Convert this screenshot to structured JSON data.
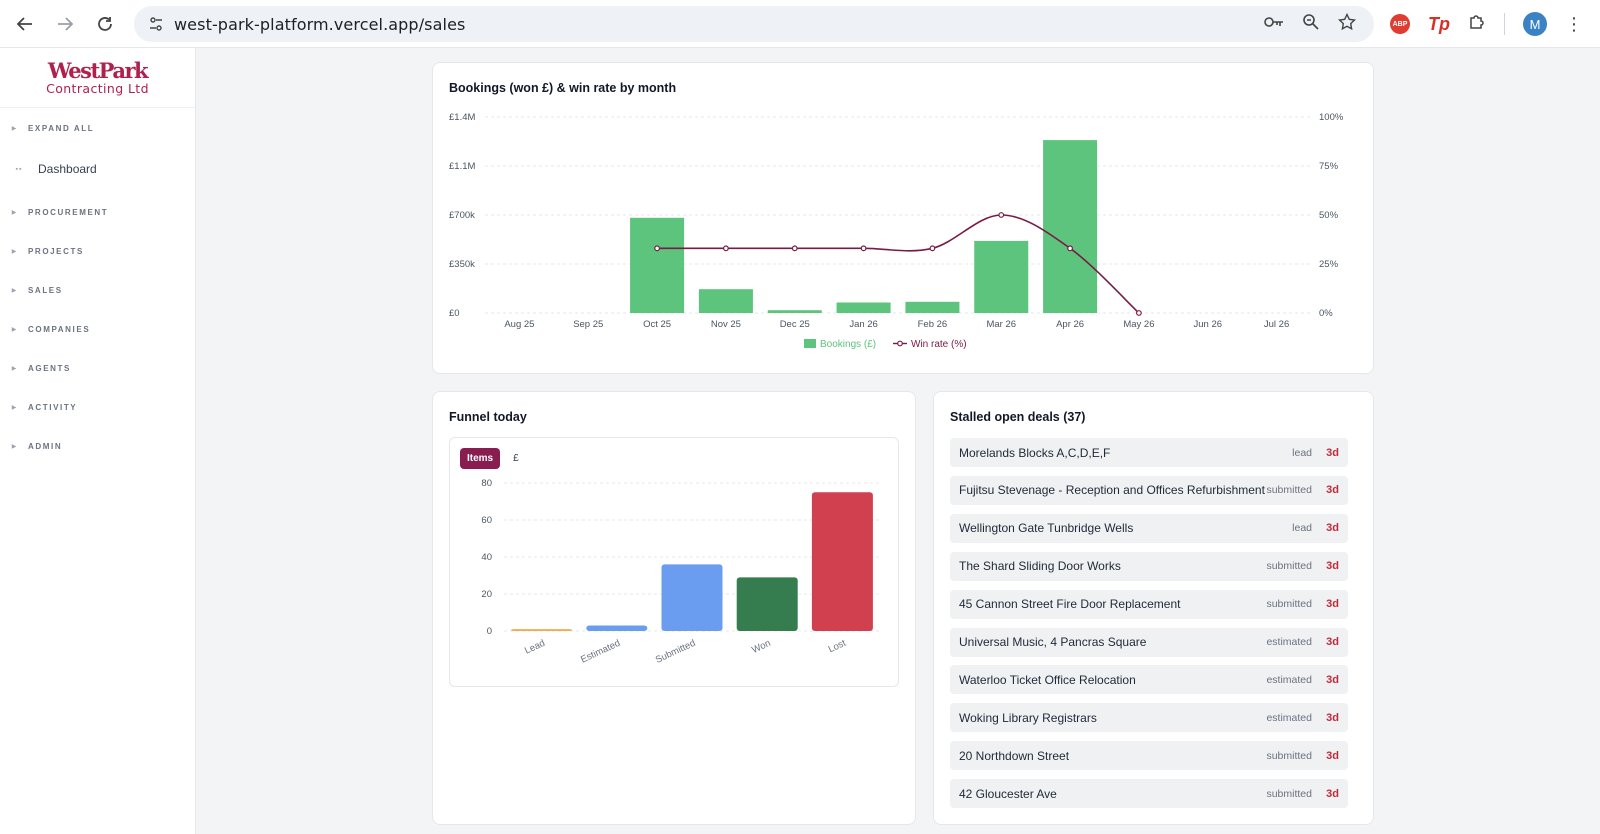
{
  "browser": {
    "url": "west-park-platform.vercel.app/sales",
    "avatar_initial": "M",
    "abp_label": "ABP",
    "tp_label": "Tp",
    "icons": [
      "back-arrow-icon",
      "forward-arrow-icon",
      "reload-icon",
      "site-info-icon",
      "password-key-icon",
      "zoom-icon",
      "bookmark-star-icon",
      "adblock-icon",
      "tp-extension-icon",
      "extensions-puzzle-icon",
      "menu-kebab-icon"
    ]
  },
  "sidebar": {
    "logo_line1": "WestPark",
    "logo_line2": "Contracting Ltd",
    "expand_all": "EXPAND ALL",
    "dashboard": "Dashboard",
    "sections": [
      "PROCUREMENT",
      "PROJECTS",
      "SALES",
      "COMPANIES",
      "AGENTS",
      "ACTIVITY",
      "ADMIN"
    ]
  },
  "bookings_card": {
    "title": "Bookings (won £) & win rate by month"
  },
  "funnel_card": {
    "title": "Funnel today",
    "toggle_items": "Items",
    "toggle_currency": "£"
  },
  "stalled_card": {
    "title": "Stalled open deals (37)",
    "deals": [
      {
        "name": "Morelands Blocks A,C,D,E,F",
        "status": "lead",
        "age": "3d"
      },
      {
        "name": "Fujitsu Stevenage - Reception and Offices Refurbishment",
        "status": "submitted",
        "age": "3d"
      },
      {
        "name": "Wellington Gate Tunbridge Wells",
        "status": "lead",
        "age": "3d"
      },
      {
        "name": "The Shard Sliding Door Works",
        "status": "submitted",
        "age": "3d"
      },
      {
        "name": "45 Cannon Street Fire Door Replacement",
        "status": "submitted",
        "age": "3d"
      },
      {
        "name": "Universal Music, 4 Pancras Square",
        "status": "estimated",
        "age": "3d"
      },
      {
        "name": "Waterloo Ticket Office Relocation",
        "status": "estimated",
        "age": "3d"
      },
      {
        "name": "Woking Library Registrars",
        "status": "estimated",
        "age": "3d"
      },
      {
        "name": "20 Northdown Street",
        "status": "submitted",
        "age": "3d"
      },
      {
        "name": "42 Gloucester Ave",
        "status": "submitted",
        "age": "3d"
      }
    ]
  },
  "colors": {
    "bookings_bar": "#5cc47c",
    "win_line": "#7a1a45",
    "brand": "#b0204f",
    "toggle_active": "#8a1d4f",
    "lead": "#f0ad4e",
    "estimated": "#6a9cf0",
    "submitted": "#6a9cf0",
    "won": "#357d4e",
    "lost": "#d0404f",
    "age": "#c02b3b"
  },
  "chart_data": [
    {
      "type": "bar",
      "title": "Bookings (won £) & win rate by month",
      "categories": [
        "Aug 25",
        "Sep 25",
        "Oct 25",
        "Nov 25",
        "Dec 25",
        "Jan 26",
        "Feb 26",
        "Mar 26",
        "Apr 26",
        "May 26",
        "Jun 26",
        "Jul 26"
      ],
      "y_ticks": [
        "£0",
        "£350k",
        "£700k",
        "£1.1M",
        "£1.4M"
      ],
      "y2_ticks": [
        "0%",
        "25%",
        "50%",
        "75%",
        "100%"
      ],
      "ylim": [
        0,
        1400000
      ],
      "y2lim": [
        0,
        100
      ],
      "series": [
        {
          "name": "Bookings (£)",
          "kind": "bar",
          "values": [
            0,
            0,
            680000,
            170000,
            20000,
            75000,
            80000,
            515000,
            1235000,
            0,
            0,
            0
          ]
        },
        {
          "name": "Win rate (%)",
          "kind": "line",
          "axis": "right",
          "values": [
            null,
            null,
            33,
            33,
            33,
            33,
            33,
            50,
            33,
            0,
            null,
            null
          ]
        }
      ],
      "legend": "bottom",
      "grid": true
    },
    {
      "type": "bar",
      "title": "Funnel today",
      "categories": [
        "Lead",
        "Estimated",
        "Submitted",
        "Won",
        "Lost"
      ],
      "values": [
        1,
        3,
        36,
        29,
        75
      ],
      "ylim": [
        0,
        80
      ],
      "y_ticks": [
        "0",
        "20",
        "40",
        "60",
        "80"
      ],
      "grid": true
    }
  ]
}
